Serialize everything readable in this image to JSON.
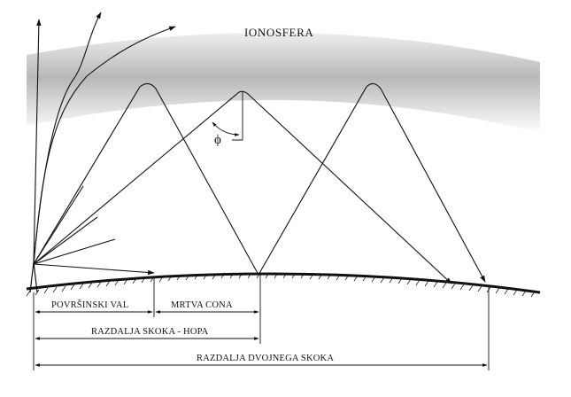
{
  "labels": {
    "ionosphere": "IONOSFERA",
    "angle": "ϕ",
    "ground_wave": "POVRŠINSKI VAL",
    "dead_zone": "MRTVA CONA",
    "skip_distance": "RAZDALJA SKOKA - HOPA",
    "double_skip_distance": "RAZDALJA DVOJNEGA SKOKA"
  },
  "colors": {
    "ink": "#111111",
    "ionosphere_top": "#f2f2f2",
    "ionosphere_mid": "#b5b5b5",
    "ionosphere_bottom": "#ffffff"
  }
}
